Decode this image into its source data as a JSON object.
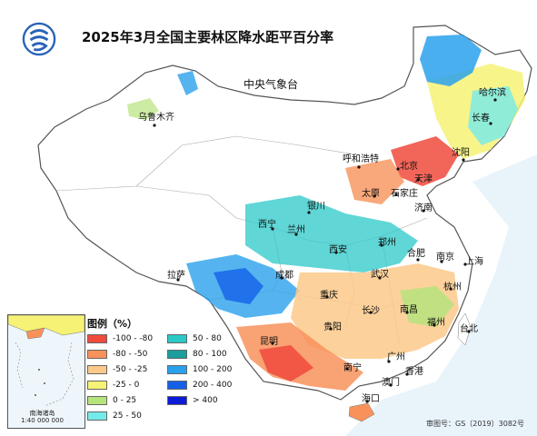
{
  "title": "2025年3月全国主要林区降水距平百分率",
  "agency": "中央气象台",
  "logo_icon": "cma-logo-icon",
  "cities": [
    "乌鲁木齐",
    "哈尔滨",
    "长春",
    "沈阳",
    "呼和浩特",
    "北京",
    "天津",
    "太原",
    "石家庄",
    "银川",
    "济南",
    "西宁",
    "兰州",
    "郑州",
    "合肥",
    "南京",
    "上海",
    "西安",
    "武汉",
    "杭州",
    "成都",
    "拉萨",
    "重庆",
    "长沙",
    "南昌",
    "福州",
    "台北",
    "贵阳",
    "昆明",
    "南宁",
    "广州",
    "香港",
    "澳门",
    "海口"
  ],
  "legend": {
    "title": "图例（%）",
    "items": [
      {
        "label": "-100 - -80",
        "color": "#f04a3c"
      },
      {
        "label": "-80 - -50",
        "color": "#f8925a"
      },
      {
        "label": "-50 - -25",
        "color": "#fbc98a"
      },
      {
        "label": "-25 - 0",
        "color": "#f6f275"
      },
      {
        "label": "0 - 25",
        "color": "#b6e37c"
      },
      {
        "label": "25 - 50",
        "color": "#74ebea"
      },
      {
        "label": "50 - 80",
        "color": "#2bc8c8"
      },
      {
        "label": "80 - 100",
        "color": "#1a9e9e"
      },
      {
        "label": "100 - 200",
        "color": "#2aa1ec"
      },
      {
        "label": "200 - 400",
        "color": "#1461e8"
      },
      {
        "label": "> 400",
        "color": "#0c1cd6"
      }
    ]
  },
  "inset": {
    "title": "南海诸岛",
    "scale": "1:40 000 000"
  },
  "approval_number": "审图号：GS（2019）3082号"
}
